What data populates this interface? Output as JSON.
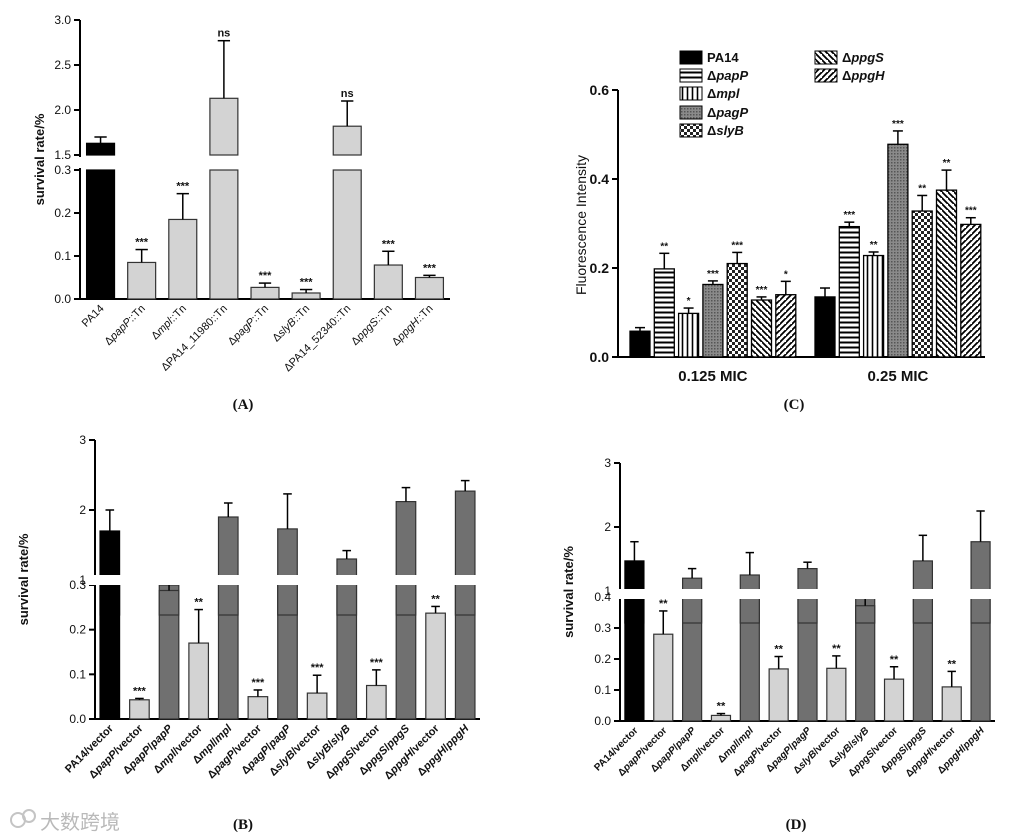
{
  "chart_data": [
    {
      "panel": "A",
      "type": "bar",
      "ylabel": "survival rate/%",
      "broken_axis": true,
      "lower_ylim": [
        0,
        0.3
      ],
      "upper_ylim": [
        1.5,
        3.0
      ],
      "lower_ticks": [
        "0.0",
        "0.1",
        "0.2",
        "0.3"
      ],
      "upper_ticks": [
        "1.5",
        "2.0",
        "2.5",
        "3.0"
      ],
      "categories": [
        "PA14",
        "ΔpapP::Tn",
        "Δmpl::Tn",
        "ΔPA14_11980::Tn",
        "ΔpagP::Tn",
        "ΔslyB::Tn",
        "ΔPA14_52340::Tn",
        "ΔppgS::Tn",
        "ΔppgH::Tn"
      ],
      "values": [
        1.63,
        0.085,
        0.185,
        2.13,
        0.027,
        0.014,
        1.82,
        0.079,
        0.05
      ],
      "errors": [
        0.07,
        0.03,
        0.06,
        0.64,
        0.01,
        0.008,
        0.28,
        0.032,
        0.005
      ],
      "colors": [
        "black",
        "#d3d3d3",
        "#d3d3d3",
        "#d3d3d3",
        "#d3d3d3",
        "#d3d3d3",
        "#d3d3d3",
        "#d3d3d3",
        "#d3d3d3"
      ],
      "significance": [
        "",
        "***",
        "***",
        "ns",
        "***",
        "***",
        "ns",
        "***",
        "***"
      ]
    },
    {
      "panel": "B",
      "type": "bar",
      "ylabel": "survival rate/%",
      "broken_axis": true,
      "lower_ylim": [
        0,
        0.3
      ],
      "upper_ylim": [
        0.5,
        3
      ],
      "lower_ticks": [
        "0.0",
        "0.1",
        "0.2",
        "0.3"
      ],
      "upper_ticks": [
        "1",
        "2",
        "3"
      ],
      "categories": [
        "PA14/vector",
        "ΔpapP/vector",
        "ΔpapP/papP",
        "Δmpl/vector",
        "Δmpl/mpl",
        "ΔpagP/vector",
        "ΔpagP/pagP",
        "ΔslyB/vector",
        "ΔslyB/slyB",
        "ΔppgS/vector",
        "ΔppgS/ppgS",
        "ΔppgH/vector",
        "ΔppgH/ppgH"
      ],
      "values": [
        1.7,
        0.043,
        0.85,
        0.17,
        1.9,
        0.05,
        1.73,
        0.058,
        1.3,
        0.075,
        2.12,
        0.237,
        2.27
      ],
      "errors": [
        0.3,
        0.003,
        0.15,
        0.075,
        0.2,
        0.015,
        0.5,
        0.04,
        0.12,
        0.035,
        0.2,
        0.015,
        0.15
      ],
      "colors": [
        "black",
        "#d3d3d3",
        "#707070",
        "#d3d3d3",
        "#707070",
        "#d3d3d3",
        "#707070",
        "#d3d3d3",
        "#707070",
        "#d3d3d3",
        "#707070",
        "#d3d3d3",
        "#707070"
      ],
      "significance": [
        "",
        "***",
        "",
        "**",
        "",
        "***",
        "",
        "***",
        "",
        "***",
        "",
        "**",
        ""
      ]
    },
    {
      "panel": "C",
      "type": "bar",
      "ylabel": "Fluorescence Intensity",
      "ylim": [
        0,
        0.6
      ],
      "ticks": [
        "0.0",
        "0.2",
        "0.4",
        "0.6"
      ],
      "groups": [
        "0.125 MIC",
        "0.25 MIC"
      ],
      "series": [
        {
          "name": "PA14",
          "values": [
            0.058,
            0.135
          ],
          "errors": [
            0.008,
            0.02
          ],
          "sig": [
            "",
            ""
          ],
          "pattern": "solid"
        },
        {
          "name": "ΔpapP",
          "values": [
            0.198,
            0.293
          ],
          "errors": [
            0.035,
            0.01
          ],
          "sig": [
            "**",
            "***"
          ],
          "pattern": "hlines"
        },
        {
          "name": "Δmpl",
          "values": [
            0.098,
            0.228
          ],
          "errors": [
            0.012,
            0.008
          ],
          "sig": [
            "*",
            "**"
          ],
          "pattern": "vlines"
        },
        {
          "name": "ΔpagP",
          "values": [
            0.163,
            0.478
          ],
          "errors": [
            0.008,
            0.03
          ],
          "sig": [
            "***",
            "***"
          ],
          "pattern": "dots"
        },
        {
          "name": "ΔslyB",
          "values": [
            0.21,
            0.328
          ],
          "errors": [
            0.025,
            0.035
          ],
          "sig": [
            "***",
            "**"
          ],
          "pattern": "checker"
        },
        {
          "name": "ΔppgS",
          "values": [
            0.128,
            0.375
          ],
          "errors": [
            0.007,
            0.045
          ],
          "sig": [
            "***",
            "**"
          ],
          "pattern": "back"
        },
        {
          "name": "ΔppgH",
          "values": [
            0.14,
            0.298
          ],
          "errors": [
            0.03,
            0.015
          ],
          "sig": [
            "*",
            "***"
          ],
          "pattern": "fwd"
        }
      ]
    },
    {
      "panel": "D",
      "type": "bar",
      "ylabel": "survival rate/%",
      "broken_axis": true,
      "lower_ylim": [
        0,
        0.4
      ],
      "upper_ylim": [
        0.5,
        3
      ],
      "lower_ticks": [
        "0.0",
        "0.1",
        "0.2",
        "0.3",
        "0.4"
      ],
      "upper_ticks": [
        "1",
        "2",
        "3"
      ],
      "categories": [
        "PA14/vector",
        "ΔpapP/vector",
        "ΔpapP/papP",
        "Δmpl/vector",
        "Δmpl/mpl",
        "ΔpagP/vector",
        "ΔpagP/pagP",
        "ΔslyB/vector",
        "ΔslyB/slyB",
        "ΔppgS/vector",
        "ΔppgS/ppgS",
        "ΔppgH/vector",
        "ΔppgH/ppgH"
      ],
      "values": [
        1.47,
        0.28,
        1.2,
        0.018,
        1.25,
        0.168,
        1.35,
        0.17,
        0.77,
        0.135,
        1.47,
        0.11,
        1.77
      ],
      "errors": [
        0.3,
        0.075,
        0.15,
        0.006,
        0.35,
        0.04,
        0.1,
        0.04,
        0.15,
        0.04,
        0.4,
        0.05,
        0.48
      ],
      "colors": [
        "black",
        "#d3d3d3",
        "#707070",
        "#d3d3d3",
        "#707070",
        "#d3d3d3",
        "#707070",
        "#d3d3d3",
        "#707070",
        "#d3d3d3",
        "#707070",
        "#d3d3d3",
        "#707070"
      ],
      "significance": [
        "",
        "**",
        "",
        "**",
        "",
        "**",
        "",
        "**",
        "",
        "**",
        "",
        "**",
        ""
      ]
    }
  ],
  "panel_labels": [
    "(A)",
    "(B)",
    "(C)",
    "(D)"
  ],
  "watermark": "大数跨境"
}
